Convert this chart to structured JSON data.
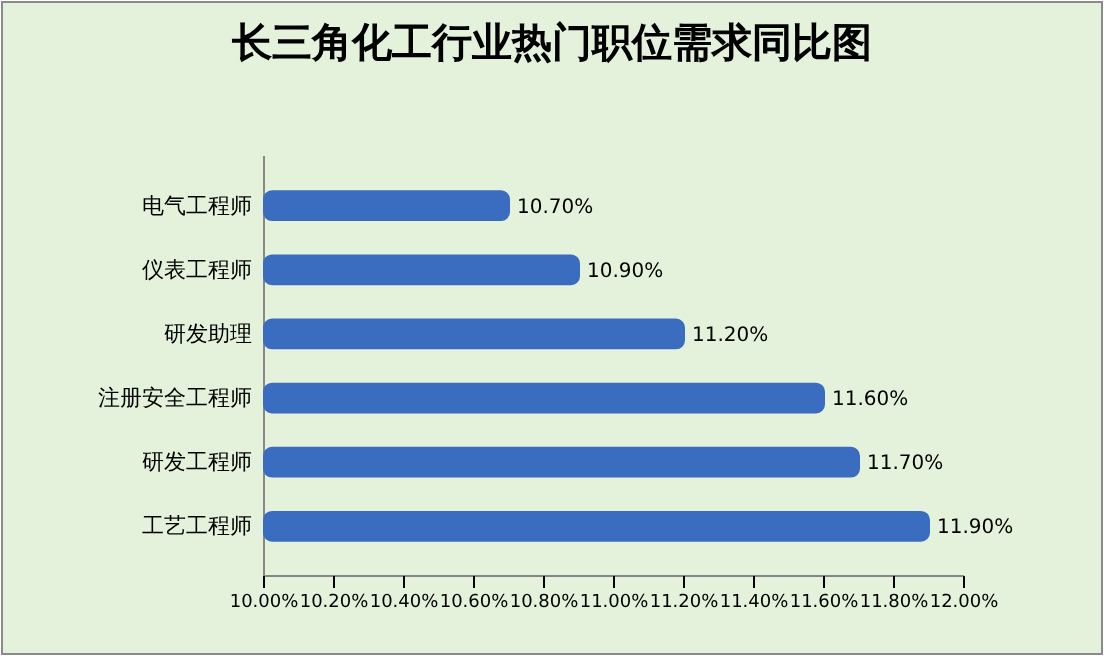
{
  "chart_data": {
    "type": "bar",
    "orientation": "horizontal",
    "title": "长三角化工行业热门职位需求同比图",
    "categories": [
      "电气工程师",
      "仪表工程师",
      "研发助理",
      "注册安全工程师",
      "研发工程师",
      "工艺工程师"
    ],
    "values": [
      10.7,
      10.9,
      11.2,
      11.6,
      11.7,
      11.9
    ],
    "value_labels": [
      "10.70%",
      "10.90%",
      "11.20%",
      "11.60%",
      "11.70%",
      "11.90%"
    ],
    "color": "#3a6cc0",
    "xlim": [
      10,
      12
    ],
    "xticks": [
      {
        "value": 10,
        "label": "10.00%"
      },
      {
        "value": 10.2,
        "label": "10.20%"
      },
      {
        "value": 10.4,
        "label": "10.40%"
      },
      {
        "value": 10.6,
        "label": "10.60%"
      },
      {
        "value": 10.8,
        "label": "10.80%"
      },
      {
        "value": 11,
        "label": "11.00%"
      },
      {
        "value": 11.2,
        "label": "11.20%"
      },
      {
        "value": 11.4,
        "label": "11.40%"
      },
      {
        "value": 11.6,
        "label": "11.60%"
      },
      {
        "value": 11.8,
        "label": "11.80%"
      },
      {
        "value": 12,
        "label": "12.00%"
      }
    ],
    "grid": false
  }
}
